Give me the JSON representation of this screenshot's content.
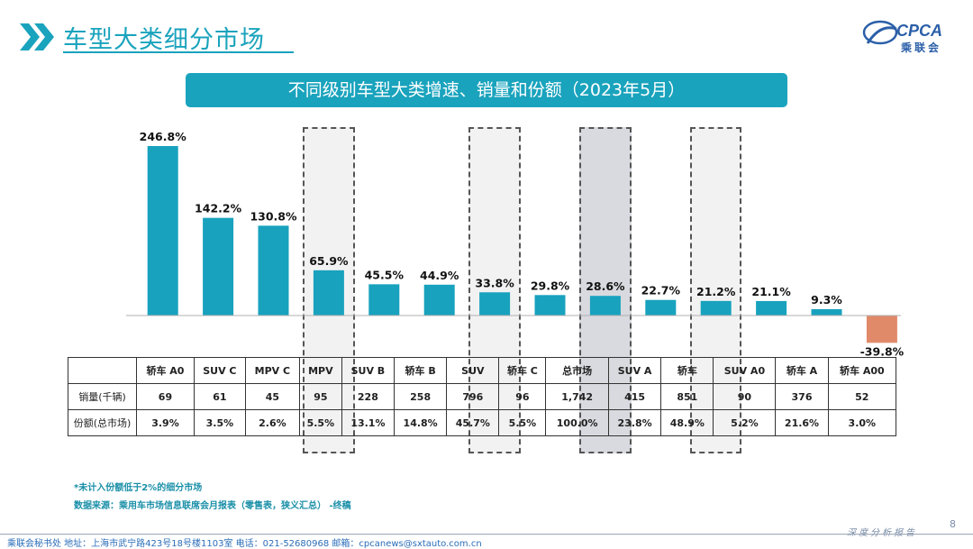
{
  "header": {
    "title": "车型大类细分市场",
    "subtitle": "不同级别车型大类增速、销量和份额（2023年5月）",
    "logo_text": "CPCA",
    "logo_cn": "乘联会"
  },
  "colors": {
    "positive": "#18a2be",
    "negative": "#e08a6a",
    "accent": "#1aa3bd"
  },
  "chart_data": {
    "type": "bar",
    "title": "不同级别车型大类增速、销量和份额（2023年5月）",
    "categories": [
      "轿车 A0",
      "SUV C",
      "MPV C",
      "MPV",
      "SUV B",
      "轿车 B",
      "SUV",
      "轿车 C",
      "总市场",
      "SUV A",
      "轿车",
      "SUV A0",
      "轿车 A",
      "轿车 A00"
    ],
    "values": [
      246.8,
      142.2,
      130.8,
      65.9,
      45.5,
      44.9,
      33.8,
      29.8,
      28.6,
      22.7,
      21.2,
      21.1,
      9.3,
      -39.8
    ],
    "value_labels": [
      "246.8%",
      "142.2%",
      "130.8%",
      "65.9%",
      "45.5%",
      "44.9%",
      "33.8%",
      "29.8%",
      "28.6%",
      "22.7%",
      "21.2%",
      "21.1%",
      "9.3%",
      "-39.8%"
    ],
    "unit": "%",
    "highlighted": [
      "MPV",
      "SUV",
      "总市场",
      "轿车"
    ]
  },
  "table": {
    "row_labels": [
      "销量(千辆)",
      "份额(总市场)"
    ],
    "sales": [
      "69",
      "61",
      "45",
      "95",
      "228",
      "258",
      "796",
      "96",
      "1,742",
      "415",
      "851",
      "90",
      "376",
      "52"
    ],
    "share": [
      "3.9%",
      "3.5%",
      "2.6%",
      "5.5%",
      "13.1%",
      "14.8%",
      "45.7%",
      "5.5%",
      "100.0%",
      "23.8%",
      "48.9%",
      "5.2%",
      "21.6%",
      "3.0%"
    ]
  },
  "notes": {
    "line1": "*未计入份额低于2%的细分市场",
    "line2": "数据来源：乘用车市场信息联席会月报表（零售表，狭义汇总） -终稿"
  },
  "footer": {
    "text": "乘联会秘书处   地址：上海市武宁路423号18号楼1103室  电话：021-52680968   邮箱：cpcanews@sxtauto.com.cn",
    "right": "深度分析报告",
    "page": "8"
  }
}
